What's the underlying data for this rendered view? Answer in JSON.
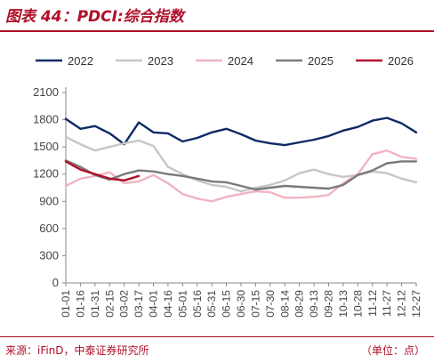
{
  "header": {
    "title": "图表 44：PDCI:综合指数"
  },
  "footer": {
    "source": "来源：iFinD，中泰证券研究所",
    "unit": "（单位：点）"
  },
  "colors": {
    "accent": "#b0102a"
  },
  "chart_data": {
    "type": "line",
    "x": [
      "01-01",
      "01-16",
      "01-31",
      "02-15",
      "03-02",
      "03-17",
      "04-01",
      "04-16",
      "05-01",
      "05-16",
      "05-31",
      "06-15",
      "06-30",
      "07-15",
      "07-30",
      "08-14",
      "08-29",
      "09-13",
      "09-28",
      "10-13",
      "10-28",
      "11-12",
      "11-27",
      "12-12",
      "12-27"
    ],
    "ylim": [
      0,
      2100
    ],
    "yticks": [
      0,
      300,
      600,
      900,
      1200,
      1500,
      1800,
      2100
    ],
    "legend_position": "top",
    "grid": false,
    "series": [
      {
        "name": "2022",
        "color": "#0d2a66",
        "values": [
          1810,
          1700,
          1730,
          1650,
          1530,
          1770,
          1660,
          1650,
          1560,
          1600,
          1660,
          1700,
          1640,
          1570,
          1540,
          1520,
          1550,
          1580,
          1620,
          1680,
          1720,
          1790,
          1820,
          1760,
          1660
        ]
      },
      {
        "name": "2023",
        "color": "#c6c6c6",
        "values": [
          1610,
          1530,
          1460,
          1500,
          1540,
          1570,
          1510,
          1280,
          1200,
          1130,
          1080,
          1060,
          1010,
          1050,
          1080,
          1130,
          1210,
          1250,
          1200,
          1170,
          1190,
          1230,
          1210,
          1150,
          1110
        ]
      },
      {
        "name": "2024",
        "color": "#f0b4c0",
        "values": [
          1070,
          1150,
          1180,
          1220,
          1100,
          1120,
          1190,
          1100,
          980,
          930,
          900,
          950,
          980,
          1010,
          1000,
          940,
          940,
          950,
          970,
          1100,
          1200,
          1420,
          1460,
          1390,
          1370
        ]
      },
      {
        "name": "2025",
        "color": "#7a7a7a",
        "values": [
          1350,
          1280,
          1190,
          1140,
          1200,
          1240,
          1230,
          1200,
          1180,
          1150,
          1120,
          1110,
          1070,
          1030,
          1050,
          1070,
          1060,
          1050,
          1040,
          1080,
          1190,
          1240,
          1320,
          1340,
          1340
        ]
      },
      {
        "name": "2026",
        "color": "#b0102a",
        "values": [
          1340,
          1250,
          1200,
          1150,
          1130,
          1180,
          null,
          null,
          null,
          null,
          null,
          null,
          null,
          null,
          null,
          null,
          null,
          null,
          null,
          null,
          null,
          null,
          null,
          null,
          null
        ]
      }
    ]
  }
}
